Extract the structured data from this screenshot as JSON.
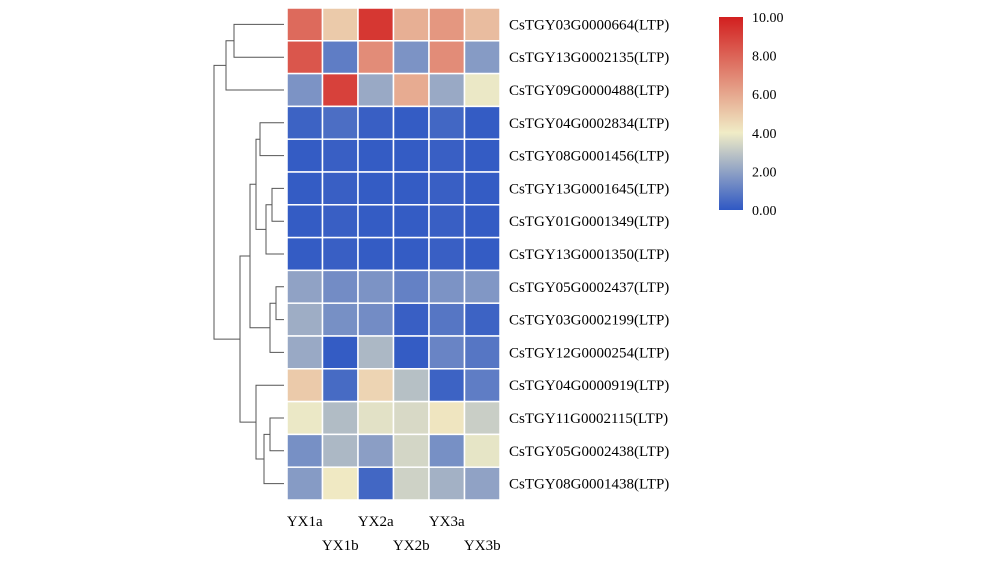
{
  "colors": {
    "low": "#2f58c4",
    "mid": "#f0ecc6",
    "high": "#d21f1f"
  },
  "chart_data": {
    "type": "heatmap",
    "title": "",
    "xlabel": "",
    "ylabel": "",
    "columns": [
      "YX1a",
      "YX1b",
      "YX2a",
      "YX2b",
      "YX3a",
      "YX3b"
    ],
    "rows": [
      "CsTGY03G0000664(LTP)",
      "CsTGY13G0002135(LTP)",
      "CsTGY09G0000488(LTP)",
      "CsTGY04G0002834(LTP)",
      "CsTGY08G0001456(LTP)",
      "CsTGY13G0001645(LTP)",
      "CsTGY01G0001349(LTP)",
      "CsTGY13G0001350(LTP)",
      "CsTGY05G0002437(LTP)",
      "CsTGY03G0002199(LTP)",
      "CsTGY12G0000254(LTP)",
      "CsTGY04G0000919(LTP)",
      "CsTGY11G0002115(LTP)",
      "CsTGY05G0002438(LTP)",
      "CsTGY08G0001438(LTP)"
    ],
    "values": [
      [
        7.8,
        5.0,
        9.3,
        5.8,
        6.5,
        5.4
      ],
      [
        8.4,
        1.0,
        6.8,
        1.6,
        6.8,
        1.8
      ],
      [
        1.6,
        9.0,
        2.2,
        5.9,
        2.2,
        3.9
      ],
      [
        0.3,
        0.6,
        0.2,
        0.1,
        0.4,
        0.1
      ],
      [
        0.1,
        0.2,
        0.1,
        0.1,
        0.2,
        0.1
      ],
      [
        0.1,
        0.2,
        0.1,
        0.1,
        0.2,
        0.1
      ],
      [
        0.1,
        0.2,
        0.1,
        0.1,
        0.2,
        0.1
      ],
      [
        0.1,
        0.2,
        0.1,
        0.1,
        0.2,
        0.1
      ],
      [
        2.0,
        1.4,
        1.6,
        1.1,
        1.6,
        1.7
      ],
      [
        2.3,
        1.5,
        1.4,
        0.2,
        0.8,
        0.3
      ],
      [
        2.2,
        0.1,
        2.6,
        0.1,
        1.2,
        0.8
      ],
      [
        5.0,
        0.5,
        4.7,
        2.8,
        0.3,
        1.0
      ],
      [
        3.9,
        2.7,
        3.7,
        3.5,
        4.2,
        3.2
      ],
      [
        1.5,
        2.6,
        1.9,
        3.4,
        1.5,
        3.8
      ],
      [
        1.8,
        4.1,
        0.4,
        3.3,
        2.4,
        2.0
      ]
    ],
    "color_scale": {
      "min": 0,
      "max": 10,
      "ticks": [
        "10.00",
        "8.00",
        "6.00",
        "4.00",
        "2.00",
        "0.00"
      ]
    },
    "dendrogram": "left",
    "legend_position": "top-right"
  }
}
